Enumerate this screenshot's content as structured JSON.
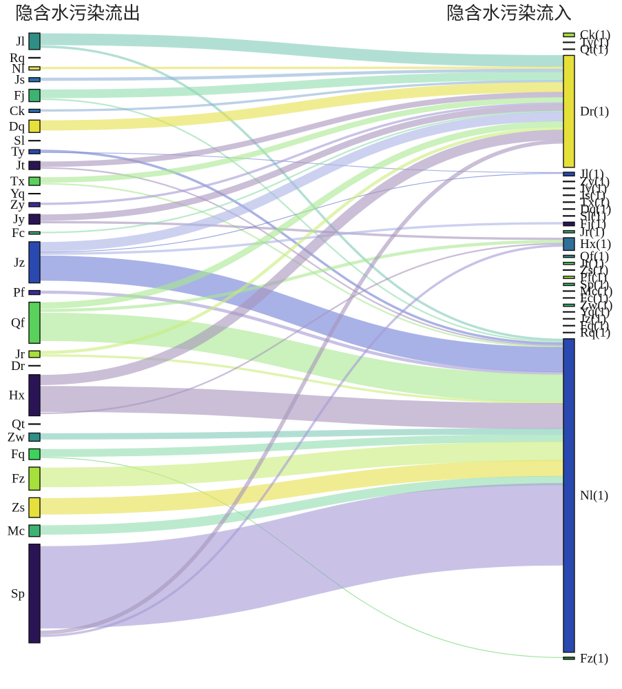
{
  "titles": {
    "left": "隐含水污染流出",
    "right": "隐含水污染流入"
  },
  "left_nodes": [
    {
      "id": "Jl",
      "label": "Jl",
      "size": 2,
      "color": "#2f8f86"
    },
    {
      "id": "Rq",
      "label": "Rq",
      "size": 0,
      "color": "#1b1b1b"
    },
    {
      "id": "Nl",
      "label": "Nl",
      "size": 0.4,
      "color": "#e0e04a"
    },
    {
      "id": "Js",
      "label": "Js",
      "size": 0.5,
      "color": "#2a6fb0"
    },
    {
      "id": "Fj",
      "label": "Fj",
      "size": 1.5,
      "color": "#3cb371"
    },
    {
      "id": "Ck",
      "label": "Ck",
      "size": 0.4,
      "color": "#2a6fb0"
    },
    {
      "id": "Dq",
      "label": "Dq",
      "size": 1.5,
      "color": "#e6e03a"
    },
    {
      "id": "Sl",
      "label": "Sl",
      "size": 0,
      "color": "#1b1b1b"
    },
    {
      "id": "Ty",
      "label": "Ty",
      "size": 0.5,
      "color": "#2a49b0"
    },
    {
      "id": "Jt",
      "label": "Jt",
      "size": 1,
      "color": "#2a1456"
    },
    {
      "id": "Tx",
      "label": "Tx",
      "size": 1,
      "color": "#5ad15a"
    },
    {
      "id": "Yq",
      "label": "Yq",
      "size": 0,
      "color": "#1b1b1b"
    },
    {
      "id": "Zy",
      "label": "Zy",
      "size": 0.5,
      "color": "#3b2a9a"
    },
    {
      "id": "Jy",
      "label": "Jy",
      "size": 1.2,
      "color": "#2a1456"
    },
    {
      "id": "Fc",
      "label": "Fc",
      "size": 0.3,
      "color": "#3cb371"
    },
    {
      "id": "Jz",
      "label": "Jz",
      "size": 5,
      "color": "#2a49b0"
    },
    {
      "id": "Pf",
      "label": "Pf",
      "size": 0.5,
      "color": "#3b2a9a"
    },
    {
      "id": "Qf",
      "label": "Qf",
      "size": 5,
      "color": "#5ad15a"
    },
    {
      "id": "Jr",
      "label": "Jr",
      "size": 0.8,
      "color": "#a6e03a"
    },
    {
      "id": "Dr",
      "label": "Dr",
      "size": 0,
      "color": "#1b1b1b"
    },
    {
      "id": "Hx",
      "label": "Hx",
      "size": 5,
      "color": "#2a1456"
    },
    {
      "id": "Qt",
      "label": "Qt",
      "size": 0,
      "color": "#1b1b1b"
    },
    {
      "id": "Zw",
      "label": "Zw",
      "size": 1,
      "color": "#2f8f86"
    },
    {
      "id": "Fq",
      "label": "Fq",
      "size": 1.3,
      "color": "#3cd35a"
    },
    {
      "id": "Fz",
      "label": "Fz",
      "size": 2.8,
      "color": "#a6e03a"
    },
    {
      "id": "Zs",
      "label": "Zs",
      "size": 2.4,
      "color": "#e6e03a"
    },
    {
      "id": "Mc",
      "label": "Mc",
      "size": 1.4,
      "color": "#3cb371"
    },
    {
      "id": "Sp",
      "label": "Sp",
      "size": 12,
      "color": "#2a1456"
    }
  ],
  "right_nodes": [
    {
      "id": "Ck",
      "label": "Ck(1)",
      "size": 0.5,
      "color": "#a6e03a"
    },
    {
      "id": "Ty",
      "label": "Ty(1)",
      "size": 0,
      "color": "#1b1b1b"
    },
    {
      "id": "Qt",
      "label": "Qt(1)",
      "size": 0,
      "color": "#1b1b1b"
    },
    {
      "id": "Dr",
      "label": "Dr(1)",
      "size": 15,
      "color": "#e6e03a"
    },
    {
      "id": "Jl",
      "label": "Jl(1)",
      "size": 0.5,
      "color": "#2a49b0"
    },
    {
      "id": "Zy",
      "label": "Zy(1)",
      "size": 0,
      "color": "#1b1b1b"
    },
    {
      "id": "Jy",
      "label": "Jy(1)",
      "size": 0,
      "color": "#1b1b1b"
    },
    {
      "id": "Js",
      "label": "Js(1)",
      "size": 0,
      "color": "#1b1b1b"
    },
    {
      "id": "Tx",
      "label": "Tx(1)",
      "size": 0,
      "color": "#1b1b1b"
    },
    {
      "id": "Dq",
      "label": "Dq(1)",
      "size": 0,
      "color": "#1b1b1b"
    },
    {
      "id": "Sl",
      "label": "Sl(1)",
      "size": 0,
      "color": "#1b1b1b"
    },
    {
      "id": "Fj",
      "label": "Fj(1)",
      "size": 0.5,
      "color": "#2a1456"
    },
    {
      "id": "Jr",
      "label": "Jr(1)",
      "size": 0.3,
      "color": "#3cb371"
    },
    {
      "id": "Hx",
      "label": "Hx(1)",
      "size": 1.7,
      "color": "#2f6f9a"
    },
    {
      "id": "Qf",
      "label": "Qf(1)",
      "size": 0.3,
      "color": "#2f8f86"
    },
    {
      "id": "Jt",
      "label": "Jt(1)",
      "size": 0.3,
      "color": "#5ad15a"
    },
    {
      "id": "Zs",
      "label": "Zs(1)",
      "size": 0,
      "color": "#1b1b1b"
    },
    {
      "id": "Pf",
      "label": "Pf(1)",
      "size": 0.3,
      "color": "#a6e03a"
    },
    {
      "id": "Sp",
      "label": "Sp(1)",
      "size": 0.3,
      "color": "#3cb371"
    },
    {
      "id": "Mc",
      "label": "Mc(1)",
      "size": 0,
      "color": "#1b1b1b"
    },
    {
      "id": "Fc",
      "label": "Fc(1)",
      "size": 0,
      "color": "#1b1b1b"
    },
    {
      "id": "Zw",
      "label": "Zw(1)",
      "size": 0.3,
      "color": "#3cb371"
    },
    {
      "id": "Yq",
      "label": "Yq(1)",
      "size": 0,
      "color": "#1b1b1b"
    },
    {
      "id": "Jz",
      "label": "Jz(1)",
      "size": 0,
      "color": "#1b1b1b"
    },
    {
      "id": "Fq",
      "label": "Fq(1)",
      "size": 0,
      "color": "#1b1b1b"
    },
    {
      "id": "Rq",
      "label": "Rq(1)",
      "size": 0,
      "color": "#1b1b1b"
    },
    {
      "id": "Nl",
      "label": "Nl(1)",
      "size": 42,
      "color": "#2a49b0"
    },
    {
      "id": "Fz",
      "label": "Fz(1)",
      "size": 0.3,
      "color": "#2a8a3a"
    }
  ],
  "flows": [
    {
      "source": "Jl",
      "target": "Dr",
      "value": 1.5,
      "color": "#7fc9b8"
    },
    {
      "source": "Jl",
      "target": "Nl",
      "value": 0.3,
      "color": "#7fc9b8"
    },
    {
      "source": "Nl",
      "target": "Dr",
      "value": 0.3,
      "color": "#e6e05a"
    },
    {
      "source": "Js",
      "target": "Dr",
      "value": 0.4,
      "color": "#8fb3d9"
    },
    {
      "source": "Fj",
      "target": "Dr",
      "value": 1.1,
      "color": "#8fdcae"
    },
    {
      "source": "Fj",
      "target": "Nl",
      "value": 0.2,
      "color": "#8fdcae"
    },
    {
      "source": "Ck",
      "target": "Dr",
      "value": 0.3,
      "color": "#8fb3d9"
    },
    {
      "source": "Dq",
      "target": "Dr",
      "value": 1.3,
      "color": "#e6e04a"
    },
    {
      "source": "Ty",
      "target": "Nl",
      "value": 0.3,
      "color": "#6f7fd0"
    },
    {
      "source": "Ty",
      "target": "Jl",
      "value": 0.1,
      "color": "#6f7fd0"
    },
    {
      "source": "Jt",
      "target": "Dr",
      "value": 0.7,
      "color": "#a795bd"
    },
    {
      "source": "Jt",
      "target": "Nl",
      "value": 0.2,
      "color": "#a795bd"
    },
    {
      "source": "Tx",
      "target": "Dr",
      "value": 0.7,
      "color": "#a8e890"
    },
    {
      "source": "Tx",
      "target": "Nl",
      "value": 0.2,
      "color": "#a8e890"
    },
    {
      "source": "Zy",
      "target": "Dr",
      "value": 0.3,
      "color": "#a59ad6"
    },
    {
      "source": "Jy",
      "target": "Dr",
      "value": 0.8,
      "color": "#a795bd"
    },
    {
      "source": "Jy",
      "target": "Hx",
      "value": 0.3,
      "color": "#a795bd"
    },
    {
      "source": "Fc",
      "target": "Dr",
      "value": 0.2,
      "color": "#8fdcae"
    },
    {
      "source": "Jz",
      "target": "Dr",
      "value": 1.2,
      "color": "#aab3e6"
    },
    {
      "source": "Jz",
      "target": "Jl",
      "value": 0.1,
      "color": "#5566c4"
    },
    {
      "source": "Jz",
      "target": "Fj",
      "value": 0.3,
      "color": "#aab3e6"
    },
    {
      "source": "Jz",
      "target": "Nl",
      "value": 3.2,
      "color": "#6f7fd6"
    },
    {
      "source": "Pf",
      "target": "Nl",
      "value": 0.4,
      "color": "#a59ad6"
    },
    {
      "source": "Qf",
      "target": "Dr",
      "value": 0.8,
      "color": "#a8e890"
    },
    {
      "source": "Qf",
      "target": "Hx",
      "value": 0.4,
      "color": "#a8e890"
    },
    {
      "source": "Qf",
      "target": "Nl",
      "value": 3.6,
      "color": "#a8e890"
    },
    {
      "source": "Jr",
      "target": "Dr",
      "value": 0.4,
      "color": "#c9ec7a"
    },
    {
      "source": "Jr",
      "target": "Nl",
      "value": 0.3,
      "color": "#c9ec7a"
    },
    {
      "source": "Hx",
      "target": "Dr",
      "value": 1.3,
      "color": "#a795bd"
    },
    {
      "source": "Hx",
      "target": "Nl",
      "value": 3.3,
      "color": "#a795bd"
    },
    {
      "source": "Hx",
      "target": "Hx",
      "value": 0.2,
      "color": "#a795bd"
    },
    {
      "source": "Zw",
      "target": "Nl",
      "value": 0.8,
      "color": "#7fc9b8"
    },
    {
      "source": "Fq",
      "target": "Nl",
      "value": 1.0,
      "color": "#8fdcae"
    },
    {
      "source": "Fq",
      "target": "Fz",
      "value": 0.1,
      "color": "#5ad15a"
    },
    {
      "source": "Fz",
      "target": "Nl",
      "value": 2.5,
      "color": "#c9ec7a"
    },
    {
      "source": "Zs",
      "target": "Nl",
      "value": 2.1,
      "color": "#e6e04a"
    },
    {
      "source": "Mc",
      "target": "Nl",
      "value": 1.2,
      "color": "#8fdcae"
    },
    {
      "source": "Sp",
      "target": "Nl",
      "value": 10.5,
      "color": "#a59ad6"
    },
    {
      "source": "Sp",
      "target": "Dr",
      "value": 0.5,
      "color": "#a795bd"
    },
    {
      "source": "Sp",
      "target": "Hx",
      "value": 0.3,
      "color": "#a59ad6"
    }
  ]
}
